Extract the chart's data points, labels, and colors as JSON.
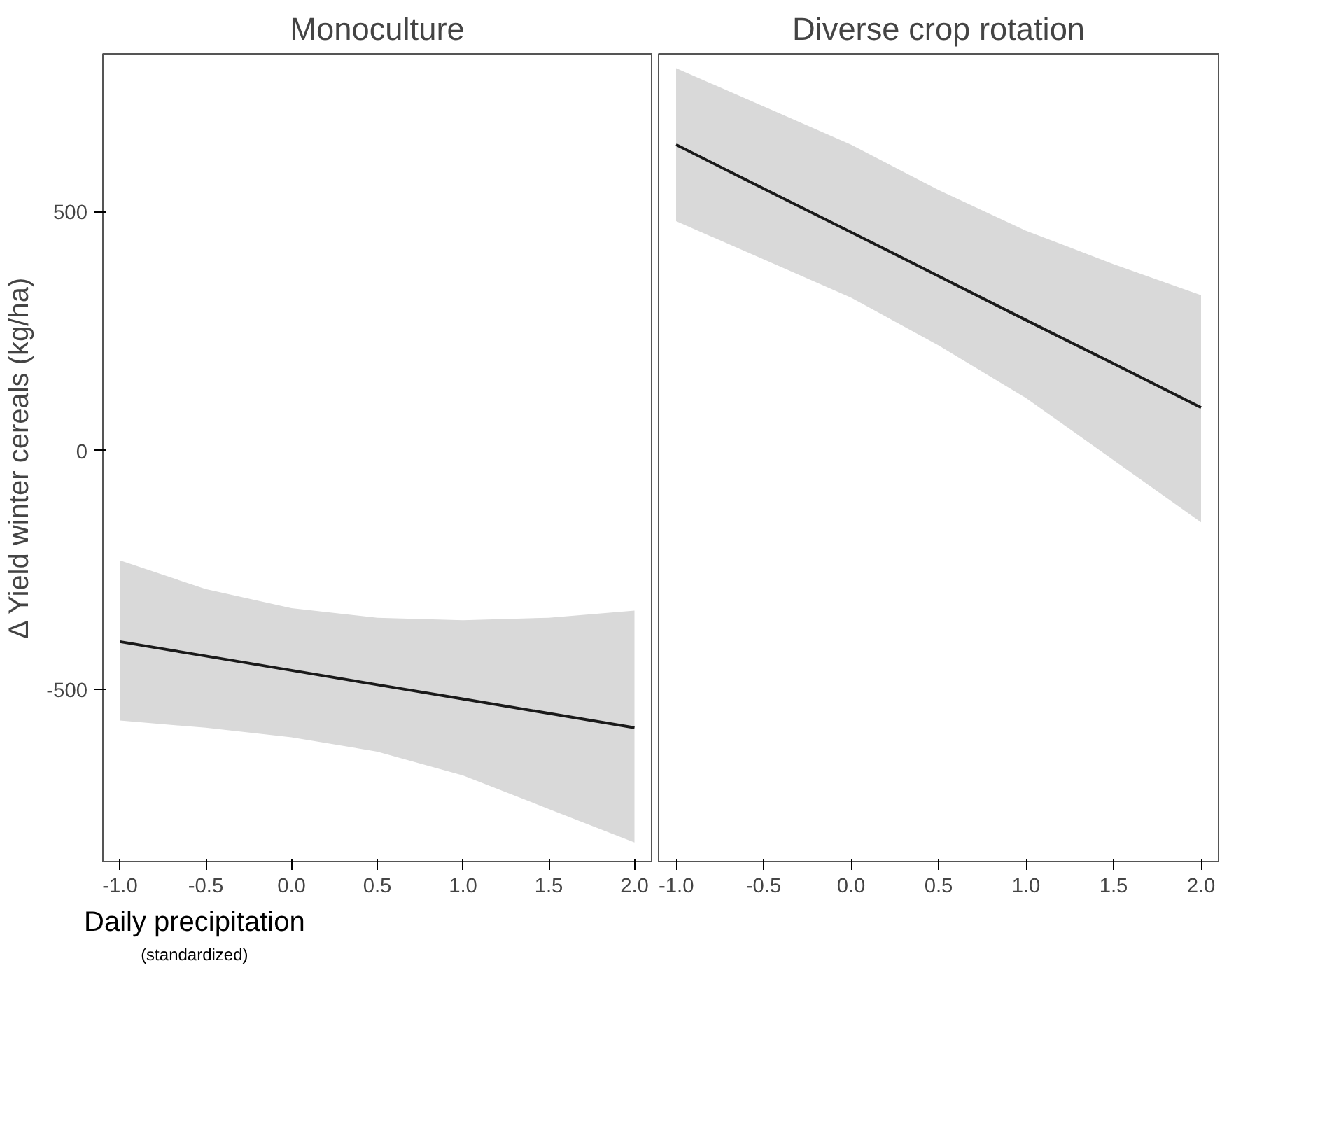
{
  "chart_data": [
    {
      "type": "line",
      "title": "Monoculture",
      "xlabel": "Daily precipitation",
      "ylabel": "Δ Yield winter cereals (kg/ha)",
      "annotations": [
        "(standardized)"
      ],
      "x": [
        -1.0,
        -0.5,
        0.0,
        0.5,
        1.0,
        1.5,
        2.0
      ],
      "series": [
        {
          "color": "#1a1a1a",
          "values": [
            -400,
            -430,
            -460,
            -490,
            -520,
            -550,
            -580
          ],
          "lower": [
            -565,
            -580,
            -600,
            -630,
            -680,
            -750,
            -820
          ],
          "upper": [
            -230,
            -290,
            -330,
            -350,
            -355,
            -350,
            -335
          ]
        }
      ],
      "xlim": [
        -1.1,
        2.1
      ],
      "ylim": [
        -860,
        830
      ],
      "xticks": [
        {
          "value": -1.0,
          "label": "-1.0"
        },
        -0.5,
        {
          "value": 0.0,
          "label": "0.0"
        },
        0.5,
        {
          "value": 1.0,
          "label": "1.0"
        },
        1.5,
        {
          "value": 2.0,
          "label": "2.0"
        }
      ],
      "yticks": [
        -500,
        0,
        500
      ],
      "grid": false
    },
    {
      "type": "line",
      "title": "Diverse crop rotation",
      "x": [
        -1.0,
        -0.5,
        0.0,
        0.5,
        1.0,
        1.5,
        2.0
      ],
      "series": [
        {
          "color": "#1a1a1a",
          "values": [
            640,
            548,
            457,
            365,
            273,
            182,
            90
          ],
          "lower": [
            480,
            400,
            320,
            220,
            110,
            -20,
            -150
          ],
          "upper": [
            800,
            720,
            640,
            545,
            460,
            390,
            325
          ]
        }
      ],
      "xlim": [
        -1.1,
        2.1
      ],
      "ylim": [
        -860,
        830
      ],
      "xticks": [
        {
          "value": -1.0,
          "label": "-1.0"
        },
        -0.5,
        {
          "value": 0.0,
          "label": "0.0"
        },
        0.5,
        {
          "value": 1.0,
          "label": "1.0"
        },
        1.5,
        {
          "value": 2.0,
          "label": "2.0"
        }
      ],
      "yticks": [
        -500,
        0,
        500
      ],
      "grid": false,
      "tick_labels": "x"
    }
  ]
}
